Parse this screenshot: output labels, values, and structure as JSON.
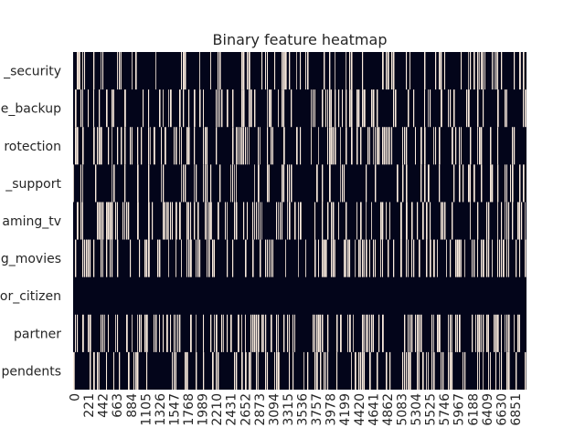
{
  "chart_data": {
    "type": "heatmap",
    "title": "Binary feature heatmap",
    "xlabel": "",
    "ylabel": "",
    "value_domain": [
      0,
      1
    ],
    "colors": {
      "zero": "#03051a",
      "one": "#faebdd",
      "background": "#ffffff",
      "text": "#262626"
    },
    "x_range": [
      0,
      7043
    ],
    "x_ticks": [
      "0",
      "221",
      "442",
      "663",
      "884",
      "1105",
      "1326",
      "1547",
      "1768",
      "1989",
      "2210",
      "2431",
      "2652",
      "2873",
      "3094",
      "3315",
      "3536",
      "3757",
      "3978",
      "4199",
      "4420",
      "4641",
      "4862",
      "5083",
      "5304",
      "5525",
      "5746",
      "5967",
      "6188",
      "6409",
      "6630",
      "6851"
    ],
    "rows": [
      {
        "label": "_security",
        "density_of_ones": 0.29
      },
      {
        "label": "e_backup",
        "density_of_ones": 0.34
      },
      {
        "label": "rotection",
        "density_of_ones": 0.34
      },
      {
        "label": "_support",
        "density_of_ones": 0.29
      },
      {
        "label": "aming_tv",
        "density_of_ones": 0.38
      },
      {
        "label": "g_movies",
        "density_of_ones": 0.39
      },
      {
        "label": "or_citizen",
        "density_of_ones": 0.0
      },
      {
        "label": "partner",
        "density_of_ones": 0.48
      },
      {
        "label": "pendents",
        "density_of_ones": 0.3
      }
    ]
  }
}
